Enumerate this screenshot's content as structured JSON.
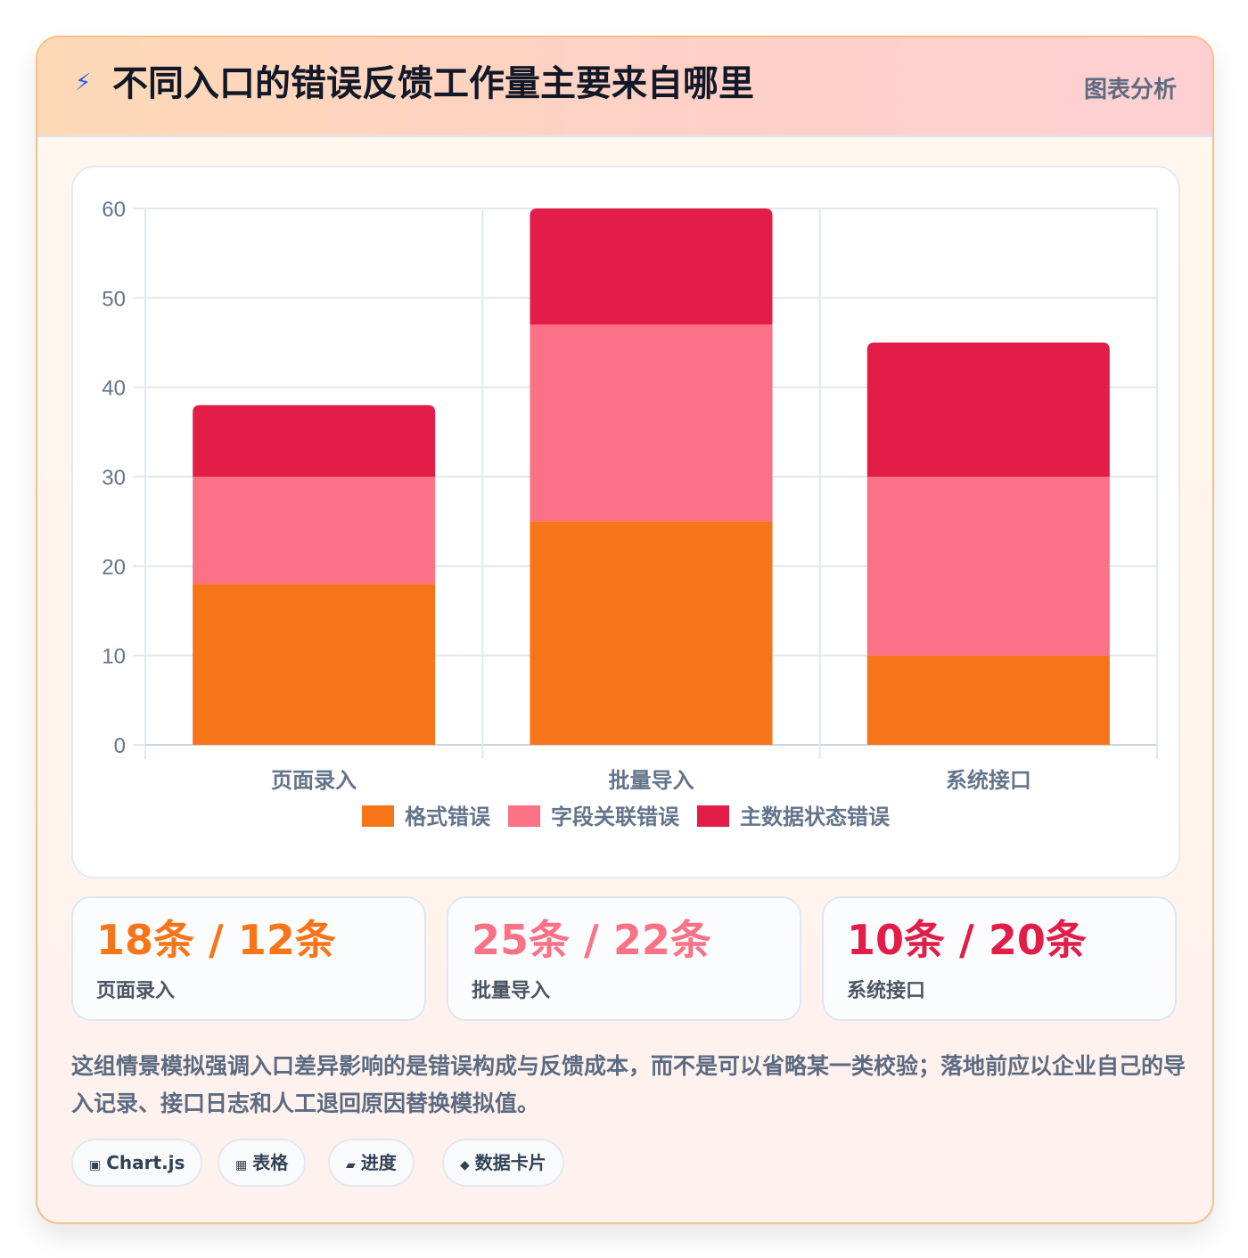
{
  "header": {
    "icon": "lightning-icon",
    "title": "不同入口的错误反馈工作量主要来自哪里",
    "tag": "图表分析"
  },
  "chart_data": {
    "type": "bar",
    "stacked": true,
    "categories": [
      "页面录入",
      "批量导入",
      "系统接口"
    ],
    "series": [
      {
        "name": "格式错误",
        "values": [
          18,
          25,
          10
        ],
        "color": "#f77519"
      },
      {
        "name": "字段关联错误",
        "values": [
          12,
          22,
          20
        ],
        "color": "#fb7185"
      },
      {
        "name": "主数据状态错误",
        "values": [
          8,
          13,
          15
        ],
        "color": "#e11d48"
      }
    ],
    "ylim": [
      0,
      60
    ],
    "yticks": [
      0,
      10,
      20,
      30,
      40,
      50,
      60
    ],
    "grid": true,
    "legend": "bottom"
  },
  "stats": [
    {
      "value": "18条 / 12条",
      "label": "页面录入",
      "color": "#f77519"
    },
    {
      "value": "25条 / 22条",
      "label": "批量导入",
      "color": "#fb7185"
    },
    {
      "value": "10条 / 20条",
      "label": "系统接口",
      "color": "#e11d48"
    }
  ],
  "note": "这组情景模拟强调入口差异影响的是错误构成与反馈成本，而不是可以省略某一类校验；落地前应以企业自己的导入记录、接口日志和人工退回原因替换模拟值。",
  "chips": [
    {
      "icon": "▣",
      "label": "Chart.js"
    },
    {
      "icon": "▦",
      "label": "表格"
    },
    {
      "icon": "▰",
      "label": "进度"
    },
    {
      "icon": "◆",
      "label": "数据卡片"
    }
  ]
}
